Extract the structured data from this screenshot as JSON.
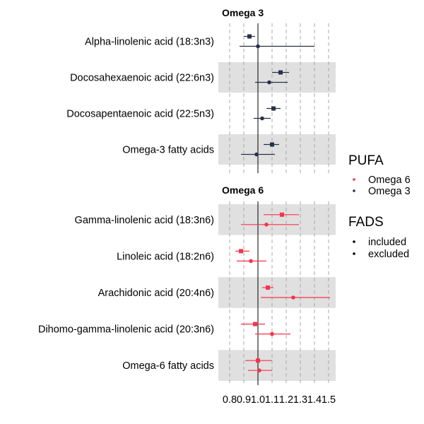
{
  "chart_data": {
    "type": "forest",
    "xlim": [
      0.72,
      1.55
    ],
    "x_ticks": [
      0.8,
      0.9,
      1.0,
      1.1,
      1.2,
      1.3,
      1.4,
      1.5
    ],
    "x_tick_labels": [
      "0.8",
      "0.9",
      "1.0",
      "1.1",
      "1.2",
      "1.3",
      "1.4",
      "1.5"
    ],
    "reference_line": 1.0,
    "grid": "dashed vertical lines at ticks",
    "legend_position": "right",
    "legend": {
      "colour_title": "PUFA",
      "colour_entries": [
        {
          "label": "Omega 6",
          "color": "#f8334c"
        },
        {
          "label": "Omega 3",
          "color": "#283049"
        }
      ],
      "shape_title": "FADS",
      "shape_entries": [
        {
          "label": "included",
          "shape": "square"
        },
        {
          "label": "excluded",
          "shape": "circle"
        }
      ]
    },
    "panels": [
      {
        "title": "Omega 3",
        "color": "#283049",
        "rows": [
          {
            "label": "Alpha-linolenic acid (18:3n3)",
            "shaded": false,
            "included": {
              "est": 0.94,
              "lo": 0.9,
              "hi": 0.98
            },
            "excluded": {
              "est": 1.0,
              "lo": 0.87,
              "hi": 1.4
            }
          },
          {
            "label": "Docosahexaenoic acid (22:6n3)",
            "shaded": true,
            "included": {
              "est": 1.16,
              "lo": 1.1,
              "hi": 1.22
            },
            "excluded": {
              "est": 1.08,
              "lo": 0.98,
              "hi": 1.21
            }
          },
          {
            "label": "Docosapentaenoic acid (22:5n3)",
            "shaded": false,
            "included": {
              "est": 1.11,
              "lo": 1.06,
              "hi": 1.16
            },
            "excluded": {
              "est": 1.03,
              "lo": 0.97,
              "hi": 1.09
            }
          },
          {
            "label": "Omega-3 fatty acids",
            "shaded": true,
            "included": {
              "est": 1.1,
              "lo": 1.04,
              "hi": 1.15
            },
            "excluded": {
              "est": 0.99,
              "lo": 0.88,
              "hi": 1.12
            }
          }
        ]
      },
      {
        "title": "Omega 6",
        "color": "#f8334c",
        "rows": [
          {
            "label": "Gamma-linolenic acid (18:3n6)",
            "shaded": true,
            "included": {
              "est": 1.17,
              "lo": 1.04,
              "hi": 1.29
            },
            "excluded": {
              "est": 1.06,
              "lo": 0.88,
              "hi": 1.29
            }
          },
          {
            "label": "Linoleic acid (18:2n6)",
            "shaded": false,
            "included": {
              "est": 0.88,
              "lo": 0.84,
              "hi": 0.94
            },
            "excluded": {
              "est": 0.95,
              "lo": 0.85,
              "hi": 1.06
            }
          },
          {
            "label": "Arachidonic acid (20:4n6)",
            "shaded": true,
            "included": {
              "est": 1.07,
              "lo": 1.03,
              "hi": 1.11
            },
            "excluded": {
              "est": 1.25,
              "lo": 1.02,
              "hi": 1.51
            }
          },
          {
            "label": "Dihomo-gamma-linolenic acid (20:3n6)",
            "shaded": false,
            "included": {
              "est": 0.98,
              "lo": 0.88,
              "hi": 1.05
            },
            "excluded": {
              "est": 1.1,
              "lo": 0.98,
              "hi": 1.23
            }
          },
          {
            "label": "Omega-6 fatty acids",
            "shaded": true,
            "included": {
              "est": 1.0,
              "lo": 0.91,
              "hi": 1.1
            },
            "excluded": {
              "est": 1.01,
              "lo": 0.93,
              "hi": 1.1
            }
          }
        ]
      }
    ]
  }
}
